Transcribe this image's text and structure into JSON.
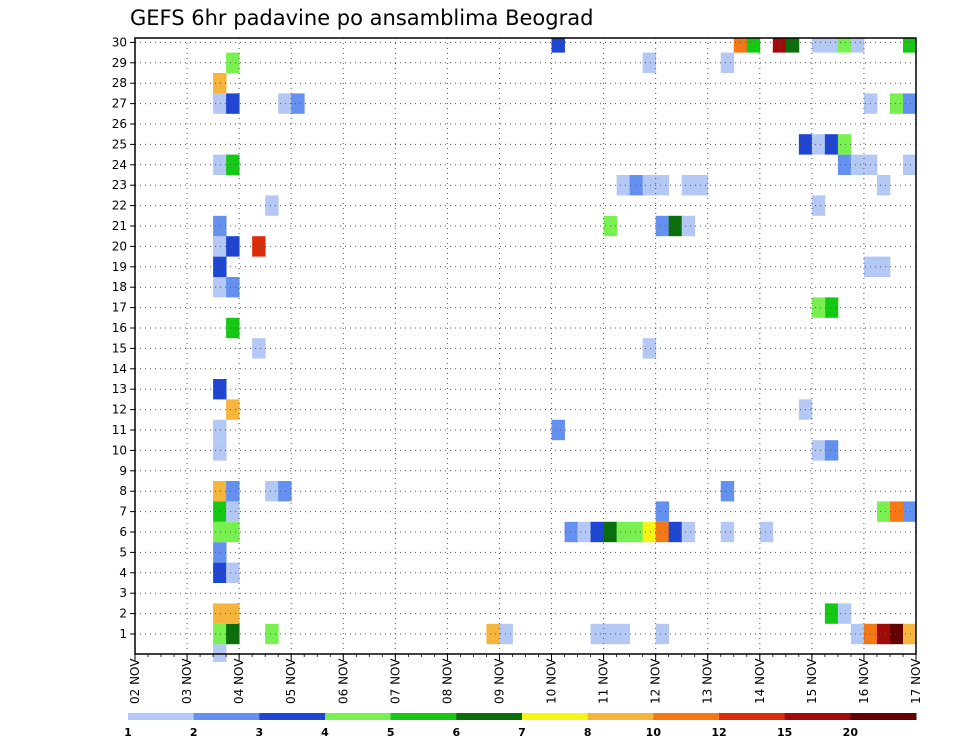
{
  "chart_data": {
    "type": "heatmap",
    "title": "GEFS 6hr padavine po ansamblima Beograd",
    "xlabel": "",
    "ylabel": "",
    "x_tick_labels": [
      "02 NOV",
      "03 NOV",
      "04 NOV",
      "05 NOV",
      "06 NOV",
      "07 NOV",
      "08 NOV",
      "09 NOV",
      "10 NOV",
      "11 NOV",
      "12 NOV",
      "13 NOV",
      "14 NOV",
      "15 NOV",
      "16 NOV",
      "17 NOV"
    ],
    "y_tick_labels": [
      "1",
      "2",
      "3",
      "4",
      "5",
      "6",
      "7",
      "8",
      "9",
      "10",
      "11",
      "12",
      "13",
      "14",
      "15",
      "16",
      "17",
      "18",
      "19",
      "20",
      "21",
      "22",
      "23",
      "24",
      "25",
      "26",
      "27",
      "28",
      "29",
      "30"
    ],
    "xlim": [
      0,
      60
    ],
    "ylim": [
      0,
      30
    ],
    "x_step_hours": 6,
    "grid": true,
    "colorbar": {
      "labels": [
        "1",
        "2",
        "3",
        "4",
        "5",
        "6",
        "7",
        "8",
        "10",
        "12",
        "15",
        "20"
      ],
      "colors": [
        "#b4c8f5",
        "#6491f0",
        "#1e46d2",
        "#78f050",
        "#14c814",
        "#0a6e0a",
        "#f5f514",
        "#f5b43c",
        "#f57814",
        "#dc2d0a",
        "#a00a0a",
        "#640000"
      ]
    },
    "cells": [
      {
        "x": 6,
        "y": 0,
        "level": 0
      },
      {
        "x": 6,
        "y": 1,
        "level": 3
      },
      {
        "x": 7,
        "y": 1,
        "level": 5
      },
      {
        "x": 10,
        "y": 1,
        "level": 3
      },
      {
        "x": 27,
        "y": 1,
        "level": 7
      },
      {
        "x": 28,
        "y": 1,
        "level": 0
      },
      {
        "x": 35,
        "y": 1,
        "level": 0
      },
      {
        "x": 36,
        "y": 1,
        "level": 0
      },
      {
        "x": 37,
        "y": 1,
        "level": 0
      },
      {
        "x": 40,
        "y": 1,
        "level": 0
      },
      {
        "x": 55,
        "y": 1,
        "level": 0
      },
      {
        "x": 56,
        "y": 1,
        "level": 8
      },
      {
        "x": 57,
        "y": 1,
        "level": 10
      },
      {
        "x": 58,
        "y": 1,
        "level": 11
      },
      {
        "x": 59,
        "y": 1,
        "level": 7
      },
      {
        "x": 6,
        "y": 2,
        "level": 7
      },
      {
        "x": 7,
        "y": 2,
        "level": 7
      },
      {
        "x": 53,
        "y": 2,
        "level": 4
      },
      {
        "x": 54,
        "y": 2,
        "level": 0
      },
      {
        "x": 6,
        "y": 4,
        "level": 2
      },
      {
        "x": 7,
        "y": 4,
        "level": 0
      },
      {
        "x": 6,
        "y": 5,
        "level": 1
      },
      {
        "x": 6,
        "y": 6,
        "level": 3
      },
      {
        "x": 7,
        "y": 6,
        "level": 3
      },
      {
        "x": 33,
        "y": 6,
        "level": 1
      },
      {
        "x": 34,
        "y": 6,
        "level": 0
      },
      {
        "x": 35,
        "y": 6,
        "level": 2
      },
      {
        "x": 36,
        "y": 6,
        "level": 5
      },
      {
        "x": 37,
        "y": 6,
        "level": 3
      },
      {
        "x": 38,
        "y": 6,
        "level": 3
      },
      {
        "x": 39,
        "y": 6,
        "level": 6
      },
      {
        "x": 40,
        "y": 6,
        "level": 8
      },
      {
        "x": 41,
        "y": 6,
        "level": 2
      },
      {
        "x": 42,
        "y": 6,
        "level": 0
      },
      {
        "x": 45,
        "y": 6,
        "level": 0
      },
      {
        "x": 48,
        "y": 6,
        "level": 0
      },
      {
        "x": 6,
        "y": 7,
        "level": 4
      },
      {
        "x": 7,
        "y": 7,
        "level": 0
      },
      {
        "x": 40,
        "y": 7,
        "level": 1
      },
      {
        "x": 57,
        "y": 7,
        "level": 3
      },
      {
        "x": 58,
        "y": 7,
        "level": 8
      },
      {
        "x": 59,
        "y": 7,
        "level": 1
      },
      {
        "x": 6,
        "y": 8,
        "level": 7
      },
      {
        "x": 7,
        "y": 8,
        "level": 1
      },
      {
        "x": 10,
        "y": 8,
        "level": 0
      },
      {
        "x": 11,
        "y": 8,
        "level": 1
      },
      {
        "x": 45,
        "y": 8,
        "level": 1
      },
      {
        "x": 6,
        "y": 10,
        "level": 0
      },
      {
        "x": 52,
        "y": 10,
        "level": 0
      },
      {
        "x": 53,
        "y": 10,
        "level": 1
      },
      {
        "x": 6,
        "y": 11,
        "level": 0
      },
      {
        "x": 32,
        "y": 11,
        "level": 1
      },
      {
        "x": 7,
        "y": 12,
        "level": 7
      },
      {
        "x": 51,
        "y": 12,
        "level": 0
      },
      {
        "x": 6,
        "y": 13,
        "level": 2
      },
      {
        "x": 9,
        "y": 15,
        "level": 0
      },
      {
        "x": 39,
        "y": 15,
        "level": 0
      },
      {
        "x": 7,
        "y": 16,
        "level": 4
      },
      {
        "x": 53,
        "y": 17,
        "level": 4
      },
      {
        "x": 52,
        "y": 17,
        "level": 3
      },
      {
        "x": 6,
        "y": 18,
        "level": 0
      },
      {
        "x": 7,
        "y": 18,
        "level": 1
      },
      {
        "x": 6,
        "y": 19,
        "level": 2
      },
      {
        "x": 56,
        "y": 19,
        "level": 0
      },
      {
        "x": 57,
        "y": 19,
        "level": 0
      },
      {
        "x": 6,
        "y": 20,
        "level": 0
      },
      {
        "x": 7,
        "y": 20,
        "level": 2
      },
      {
        "x": 9,
        "y": 20,
        "level": 9
      },
      {
        "x": 6,
        "y": 21,
        "level": 1
      },
      {
        "x": 36,
        "y": 21,
        "level": 3
      },
      {
        "x": 40,
        "y": 21,
        "level": 1
      },
      {
        "x": 41,
        "y": 21,
        "level": 5
      },
      {
        "x": 42,
        "y": 21,
        "level": 0
      },
      {
        "x": 10,
        "y": 22,
        "level": 0
      },
      {
        "x": 52,
        "y": 22,
        "level": 0
      },
      {
        "x": 37,
        "y": 23,
        "level": 0
      },
      {
        "x": 38,
        "y": 23,
        "level": 1
      },
      {
        "x": 39,
        "y": 23,
        "level": 0
      },
      {
        "x": 40,
        "y": 23,
        "level": 0
      },
      {
        "x": 42,
        "y": 23,
        "level": 0
      },
      {
        "x": 43,
        "y": 23,
        "level": 0
      },
      {
        "x": 57,
        "y": 23,
        "level": 0
      },
      {
        "x": 6,
        "y": 24,
        "level": 0
      },
      {
        "x": 7,
        "y": 24,
        "level": 4
      },
      {
        "x": 54,
        "y": 24,
        "level": 1
      },
      {
        "x": 55,
        "y": 24,
        "level": 0
      },
      {
        "x": 56,
        "y": 24,
        "level": 0
      },
      {
        "x": 59,
        "y": 24,
        "level": 0
      },
      {
        "x": 51,
        "y": 25,
        "level": 2
      },
      {
        "x": 52,
        "y": 25,
        "level": 0
      },
      {
        "x": 53,
        "y": 25,
        "level": 2
      },
      {
        "x": 54,
        "y": 25,
        "level": 3
      },
      {
        "x": 6,
        "y": 27,
        "level": 0
      },
      {
        "x": 7,
        "y": 27,
        "level": 2
      },
      {
        "x": 11,
        "y": 27,
        "level": 0
      },
      {
        "x": 12,
        "y": 27,
        "level": 1
      },
      {
        "x": 56,
        "y": 27,
        "level": 0
      },
      {
        "x": 58,
        "y": 27,
        "level": 3
      },
      {
        "x": 59,
        "y": 27,
        "level": 1
      },
      {
        "x": 6,
        "y": 28,
        "level": 7
      },
      {
        "x": 7,
        "y": 29,
        "level": 3
      },
      {
        "x": 39,
        "y": 29,
        "level": 0
      },
      {
        "x": 45,
        "y": 29,
        "level": 0
      },
      {
        "x": 32,
        "y": 30,
        "level": 2
      },
      {
        "x": 46,
        "y": 30,
        "level": 8
      },
      {
        "x": 47,
        "y": 30,
        "level": 4
      },
      {
        "x": 49,
        "y": 30,
        "level": 10
      },
      {
        "x": 50,
        "y": 30,
        "level": 5
      },
      {
        "x": 52,
        "y": 30,
        "level": 0
      },
      {
        "x": 53,
        "y": 30,
        "level": 0
      },
      {
        "x": 54,
        "y": 30,
        "level": 3
      },
      {
        "x": 55,
        "y": 30,
        "level": 0
      },
      {
        "x": 59,
        "y": 30,
        "level": 4
      }
    ]
  }
}
